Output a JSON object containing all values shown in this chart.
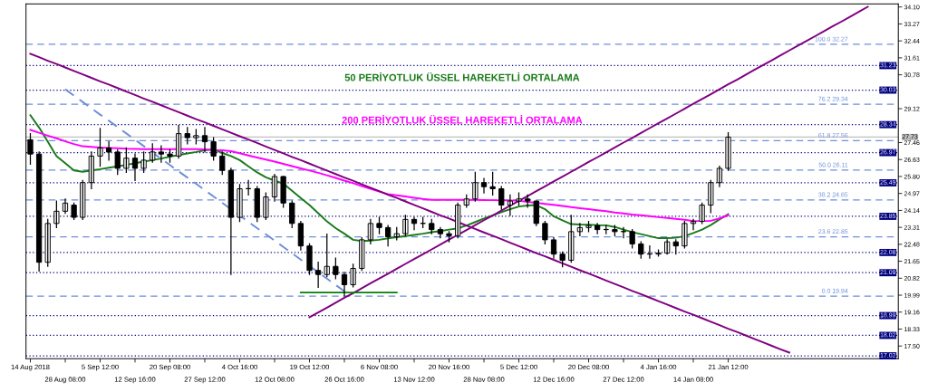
{
  "chart_data": {
    "type": "candlestick",
    "categories": [
      "14 Aug 2018",
      null,
      null,
      null,
      "28 Aug 08:00",
      null,
      null,
      null,
      "5 Sep 12:00",
      null,
      null,
      null,
      "12 Sep 16:00",
      null,
      null,
      null,
      "20 Sep 08:00",
      null,
      null,
      null,
      "27 Sep 12:00",
      null,
      null,
      null,
      "4 Oct 16:00",
      null,
      null,
      null,
      "12 Oct 08:00",
      null,
      null,
      null,
      "19 Oct 12:00",
      null,
      null,
      null,
      "26 Oct 16:00",
      null,
      null,
      null,
      "6 Nov 08:00",
      null,
      null,
      null,
      "13 Nov 12:00",
      null,
      null,
      null,
      "20 Nov 16:00",
      null,
      null,
      null,
      "28 Nov 08:00",
      null,
      null,
      null,
      "5 Dec 12:00",
      null,
      null,
      null,
      "12 Dec 16:00",
      null,
      null,
      null,
      "20 Dec 08:00",
      null,
      null,
      null,
      "27 Dec 12:00",
      null,
      null,
      null,
      "4 Jan 16:00",
      null,
      null,
      null,
      "14 Jan 08:00",
      null,
      null,
      null,
      "21 Jan 12:00",
      null,
      null,
      null,
      null,
      null,
      null,
      null,
      null,
      null,
      null,
      null,
      null,
      null,
      null,
      null,
      null,
      null,
      null,
      null
    ],
    "ohlc": [
      [
        27.6,
        27.9,
        26.4,
        26.9
      ],
      [
        26.9,
        27.0,
        21.17,
        21.6
      ],
      [
        21.6,
        23.7,
        21.4,
        23.5
      ],
      [
        23.5,
        24.6,
        23.3,
        24.1
      ],
      [
        24.1,
        24.7,
        24.0,
        24.5
      ],
      [
        24.4,
        24.5,
        23.7,
        23.8
      ],
      [
        23.8,
        25.6,
        23.7,
        25.5
      ],
      [
        25.5,
        27.0,
        25.2,
        26.8
      ],
      [
        26.8,
        28.15,
        26.3,
        27.2
      ],
      [
        27.2,
        27.5,
        26.6,
        27.0
      ],
      [
        27.0,
        27.1,
        25.9,
        26.2
      ],
      [
        26.2,
        27.2,
        26.0,
        26.7
      ],
      [
        26.7,
        26.9,
        25.6,
        26.2
      ],
      [
        26.2,
        27.0,
        26.0,
        26.6
      ],
      [
        26.6,
        27.4,
        26.5,
        27.0
      ],
      [
        27.0,
        27.3,
        26.5,
        26.9
      ],
      [
        26.9,
        27.1,
        26.5,
        26.8
      ],
      [
        26.8,
        28.3,
        26.7,
        27.9
      ],
      [
        27.9,
        28.2,
        27.4,
        27.7
      ],
      [
        27.7,
        28.1,
        27.4,
        27.8
      ],
      [
        27.8,
        28.2,
        27.0,
        27.5
      ],
      [
        27.5,
        27.7,
        26.6,
        26.8
      ],
      [
        26.8,
        27.0,
        25.9,
        26.1
      ],
      [
        26.1,
        26.2,
        21.0,
        23.8
      ],
      [
        23.8,
        25.4,
        23.6,
        25.2
      ],
      [
        25.2,
        25.6,
        24.9,
        25.2
      ],
      [
        25.2,
        25.3,
        23.6,
        23.8
      ],
      [
        23.8,
        25.0,
        23.7,
        24.8
      ],
      [
        24.8,
        25.9,
        24.6,
        25.8
      ],
      [
        25.8,
        25.8,
        24.3,
        24.5
      ],
      [
        24.5,
        24.6,
        23.3,
        23.5
      ],
      [
        23.5,
        23.6,
        22.2,
        22.4
      ],
      [
        22.4,
        22.5,
        21.0,
        21.2
      ],
      [
        21.2,
        21.6,
        20.37,
        21.0
      ],
      [
        21.0,
        22.98,
        20.9,
        21.4
      ],
      [
        21.4,
        21.8,
        20.8,
        21.0
      ],
      [
        21.0,
        21.1,
        19.95,
        20.5
      ],
      [
        20.5,
        21.5,
        20.4,
        21.3
      ],
      [
        21.3,
        22.8,
        21.2,
        22.7
      ],
      [
        22.7,
        23.7,
        22.5,
        23.5
      ],
      [
        23.5,
        23.8,
        23.0,
        23.3
      ],
      [
        23.3,
        23.4,
        22.4,
        22.85
      ],
      [
        22.85,
        23.3,
        22.7,
        23.0
      ],
      [
        23.0,
        23.9,
        22.9,
        23.7
      ],
      [
        23.7,
        23.8,
        23.2,
        23.5
      ],
      [
        23.5,
        23.8,
        23.3,
        23.5
      ],
      [
        23.5,
        23.7,
        23.0,
        23.2
      ],
      [
        23.2,
        23.3,
        22.8,
        23.0
      ],
      [
        23.0,
        23.1,
        22.6,
        22.9
      ],
      [
        22.9,
        24.5,
        22.8,
        24.4
      ],
      [
        24.4,
        24.9,
        24.3,
        24.7
      ],
      [
        24.7,
        26.0,
        24.6,
        25.5
      ],
      [
        25.5,
        25.7,
        25.0,
        25.3
      ],
      [
        25.3,
        26.0,
        24.9,
        25.2
      ],
      [
        25.2,
        25.3,
        24.2,
        24.4
      ],
      [
        24.4,
        24.9,
        23.9,
        24.6
      ],
      [
        24.6,
        25.0,
        24.4,
        24.7
      ],
      [
        24.7,
        24.9,
        24.3,
        24.6
      ],
      [
        24.6,
        24.6,
        23.4,
        23.5
      ],
      [
        23.5,
        23.6,
        22.5,
        22.7
      ],
      [
        22.7,
        22.8,
        21.8,
        22.0
      ],
      [
        22.0,
        22.1,
        21.38,
        21.7
      ],
      [
        21.7,
        23.9,
        21.6,
        23.1
      ],
      [
        23.1,
        23.5,
        22.9,
        23.3
      ],
      [
        23.3,
        23.6,
        23.1,
        23.4
      ],
      [
        23.4,
        23.5,
        23.0,
        23.2
      ],
      [
        23.2,
        23.4,
        23.0,
        23.2
      ],
      [
        23.2,
        23.4,
        22.9,
        23.1
      ],
      [
        23.1,
        23.3,
        22.8,
        23.1
      ],
      [
        23.1,
        23.2,
        22.3,
        22.5
      ],
      [
        22.5,
        22.6,
        21.8,
        22.0
      ],
      [
        22.0,
        22.4,
        21.8,
        22.0
      ],
      [
        22.0,
        22.2,
        21.9,
        22.05
      ],
      [
        22.05,
        22.7,
        22.0,
        22.6
      ],
      [
        22.6,
        22.7,
        22.0,
        22.4
      ],
      [
        22.4,
        23.6,
        22.3,
        23.5
      ],
      [
        23.5,
        23.7,
        23.2,
        23.6
      ],
      [
        23.6,
        24.5,
        23.5,
        24.4
      ],
      [
        24.4,
        25.6,
        24.03,
        25.5
      ],
      [
        25.5,
        26.3,
        25.3,
        26.2
      ],
      [
        26.2,
        27.94,
        26.1,
        27.73
      ],
      null,
      null,
      null,
      null,
      null,
      null,
      null,
      null,
      null,
      null,
      null,
      null,
      null,
      null,
      null,
      null,
      null,
      null,
      null
    ],
    "series": [
      {
        "name": "50 PERİYOTLUK ÜSSEL HAREKETLİ ORTALAMA",
        "type": "line",
        "color": "#1a7a1a",
        "values": [
          28.8,
          28.2,
          27.5,
          26.8,
          26.45,
          26.1,
          26.03,
          26.1,
          26.16,
          26.23,
          26.3,
          26.37,
          26.45,
          26.53,
          26.6,
          26.68,
          26.77,
          26.85,
          26.93,
          27.0,
          27.08,
          27.13,
          26.95,
          26.8,
          26.6,
          26.3,
          26.0,
          25.76,
          25.6,
          25.45,
          25.1,
          24.75,
          24.4,
          24.0,
          23.6,
          23.27,
          23.0,
          22.7,
          22.64,
          22.66,
          22.7,
          22.77,
          22.83,
          22.88,
          22.94,
          23.0,
          23.07,
          23.13,
          23.2,
          23.26,
          23.4,
          23.57,
          23.74,
          23.9,
          24.05,
          24.2,
          24.33,
          24.38,
          24.4,
          24.2,
          23.85,
          23.65,
          23.47,
          23.45,
          23.44,
          23.42,
          23.41,
          23.33,
          23.2,
          23.08,
          22.98,
          22.88,
          22.78,
          22.78,
          22.8,
          22.88,
          23.03,
          23.2,
          23.42,
          23.7,
          23.95,
          null,
          null,
          null,
          null,
          null,
          null,
          null,
          null,
          null,
          null,
          null,
          null,
          null,
          null,
          null,
          null,
          null,
          null,
          null
        ]
      },
      {
        "name": "200 PERİYOTLUK ÜSSEL HAREKETLİ ORTALAMA",
        "type": "line",
        "color": "#ff00ff",
        "values": [
          28.08,
          27.94,
          27.8,
          27.67,
          27.52,
          27.39,
          27.28,
          27.25,
          27.22,
          27.2,
          27.18,
          27.16,
          27.15,
          27.14,
          27.14,
          27.14,
          27.14,
          27.14,
          27.14,
          27.14,
          27.13,
          27.1,
          27.08,
          27.04,
          26.94,
          26.83,
          26.73,
          26.63,
          26.53,
          26.42,
          26.31,
          26.2,
          26.09,
          25.98,
          25.86,
          25.73,
          25.6,
          25.47,
          25.33,
          25.2,
          25.06,
          24.94,
          24.88,
          24.82,
          24.76,
          24.7,
          24.66,
          24.66,
          24.66,
          24.66,
          24.66,
          24.66,
          24.65,
          24.64,
          24.63,
          24.63,
          24.61,
          24.56,
          24.51,
          24.46,
          24.41,
          24.36,
          24.3,
          24.25,
          24.2,
          24.15,
          24.1,
          24.04,
          23.99,
          23.94,
          23.9,
          23.86,
          23.81,
          23.77,
          23.73,
          23.68,
          23.62,
          23.62,
          23.63,
          23.75,
          23.9,
          null,
          null,
          null,
          null,
          null,
          null,
          null,
          null,
          null,
          null,
          null,
          null,
          null,
          null,
          null,
          null,
          null,
          null,
          null
        ]
      },
      {
        "type": "line",
        "color": "#800080",
        "values": [
          31.81,
          31.64,
          31.47,
          31.31,
          31.14,
          30.97,
          30.8,
          30.63,
          30.46,
          30.3,
          30.13,
          29.96,
          29.79,
          29.62,
          29.46,
          29.29,
          29.12,
          28.95,
          28.78,
          28.61,
          28.45,
          28.28,
          28.11,
          27.94,
          27.77,
          27.61,
          27.44,
          27.27,
          27.1,
          26.93,
          26.76,
          26.6,
          26.43,
          26.26,
          26.09,
          25.92,
          25.75,
          25.59,
          25.42,
          25.25,
          25.08,
          24.91,
          24.75,
          24.58,
          24.41,
          24.24,
          24.07,
          23.9,
          23.74,
          23.57,
          23.4,
          23.23,
          23.06,
          22.9,
          22.73,
          22.56,
          22.39,
          22.22,
          22.05,
          21.89,
          21.72,
          21.55,
          21.38,
          21.21,
          21.05,
          20.88,
          20.71,
          20.54,
          20.37,
          20.2,
          20.04,
          19.87,
          19.7,
          19.53,
          19.36,
          19.19,
          19.03,
          18.86,
          18.69,
          18.52,
          18.35,
          18.19,
          18.02,
          17.85,
          17.68,
          17.51,
          17.34,
          17.18,
          null,
          null,
          null,
          null,
          null,
          null,
          null,
          null,
          null,
          null,
          null,
          null
        ]
      },
      {
        "type": "line",
        "color": "#800080",
        "values": [
          null,
          null,
          null,
          null,
          null,
          null,
          null,
          null,
          null,
          null,
          null,
          null,
          null,
          null,
          null,
          null,
          null,
          null,
          null,
          null,
          null,
          null,
          null,
          null,
          null,
          null,
          null,
          null,
          null,
          null,
          null,
          null,
          18.91,
          19.14,
          19.38,
          19.62,
          19.86,
          20.09,
          20.33,
          20.57,
          20.81,
          21.04,
          21.28,
          21.52,
          21.76,
          21.99,
          22.23,
          22.47,
          22.71,
          22.94,
          23.18,
          23.42,
          23.66,
          23.89,
          24.13,
          24.37,
          24.61,
          24.84,
          25.08,
          25.32,
          25.56,
          25.79,
          26.03,
          26.27,
          26.51,
          26.74,
          26.98,
          27.22,
          27.46,
          27.69,
          27.93,
          28.17,
          28.41,
          28.64,
          28.88,
          29.12,
          29.36,
          29.59,
          29.83,
          30.07,
          30.31,
          30.54,
          30.78,
          31.02,
          31.26,
          31.49,
          31.73,
          31.97,
          32.21,
          32.44,
          32.68,
          32.92,
          33.16,
          33.39,
          33.63,
          33.87,
          34.11,
          null,
          null,
          null
        ]
      },
      {
        "type": "line",
        "color": "#6f8fd8",
        "line_style": "dashed",
        "values": [
          null,
          null,
          null,
          null,
          30.07,
          29.76,
          29.45,
          29.14,
          28.83,
          28.53,
          28.22,
          27.91,
          27.6,
          27.29,
          26.98,
          26.67,
          26.36,
          26.05,
          25.75,
          25.44,
          25.13,
          24.82,
          24.51,
          24.2,
          23.89,
          23.58,
          23.27,
          22.97,
          22.66,
          22.35,
          22.04,
          21.73,
          21.42,
          21.11,
          20.8,
          20.49,
          20.18,
          null,
          null,
          null,
          null,
          null,
          null,
          null,
          null,
          null,
          null,
          null,
          null,
          null,
          null,
          null,
          null,
          null,
          null,
          null,
          null,
          null,
          null,
          null,
          null,
          null,
          null,
          null,
          null,
          null,
          null,
          null,
          null,
          null,
          null,
          null,
          null,
          null,
          null,
          null,
          null,
          null,
          null,
          null,
          null,
          null,
          null,
          null,
          null,
          null,
          null,
          null,
          null,
          null,
          null,
          null,
          null,
          null,
          null,
          null,
          null,
          null,
          null,
          null
        ]
      },
      {
        "type": "line",
        "color": "#008000",
        "values": [
          null,
          null,
          null,
          null,
          null,
          null,
          null,
          null,
          null,
          null,
          null,
          null,
          null,
          null,
          null,
          null,
          null,
          null,
          null,
          null,
          null,
          null,
          null,
          null,
          null,
          null,
          null,
          null,
          null,
          null,
          null,
          20.12,
          20.12,
          20.12,
          20.12,
          20.12,
          20.12,
          20.12,
          20.12,
          20.12,
          20.12,
          20.12,
          20.12,
          null,
          null,
          null,
          null,
          null,
          null,
          null,
          null,
          null,
          null,
          null,
          null,
          null,
          null,
          null,
          null,
          null,
          null,
          null,
          null,
          null,
          null,
          null,
          null,
          null,
          null,
          null,
          null,
          null,
          null,
          null,
          null,
          null,
          null,
          null,
          null,
          null,
          null,
          null,
          null,
          null,
          null,
          null,
          null,
          null,
          null,
          null,
          null,
          null,
          null,
          null,
          null,
          null,
          null,
          null,
          null,
          null
        ]
      }
    ],
    "ref_lines": [
      {
        "axis": "y",
        "value": 31.23,
        "label": "31.23",
        "color": "#000080",
        "line_style": "dotted"
      },
      {
        "axis": "y",
        "value": 30.03,
        "label": "30.03",
        "color": "#000080",
        "line_style": "dotted"
      },
      {
        "axis": "y",
        "value": 28.34,
        "label": "28.34",
        "color": "#000080",
        "line_style": "dotted"
      },
      {
        "axis": "y",
        "value": 26.97,
        "label": "26.97",
        "color": "#000080",
        "line_style": "dotted"
      },
      {
        "axis": "y",
        "value": 25.49,
        "label": "25.49",
        "color": "#000080",
        "line_style": "dotted"
      },
      {
        "axis": "y",
        "value": 23.85,
        "label": "23.85",
        "color": "#000080",
        "line_style": "dotted"
      },
      {
        "axis": "y",
        "value": 22.08,
        "label": "22.08",
        "color": "#000080",
        "line_style": "dotted"
      },
      {
        "axis": "y",
        "value": 21.09,
        "label": "21.09",
        "color": "#000080",
        "line_style": "dotted"
      },
      {
        "axis": "y",
        "value": 18.99,
        "label": "18.99",
        "color": "#000080",
        "line_style": "dotted"
      },
      {
        "axis": "y",
        "value": 18.02,
        "label": "18.02",
        "color": "#000080",
        "line_style": "dotted"
      },
      {
        "axis": "y",
        "value": 17.02,
        "label": "17.02",
        "color": "#000080",
        "line_style": "dotted"
      },
      {
        "axis": "y",
        "value": 32.27,
        "label": "100.0 32.27",
        "color": "#6f8fd8",
        "line_style": "dashed"
      },
      {
        "axis": "y",
        "value": 29.34,
        "label": "76.2 29.34",
        "color": "#6f8fd8",
        "line_style": "dashed"
      },
      {
        "axis": "y",
        "value": 27.56,
        "label": "61.8 27.56",
        "color": "#6f8fd8",
        "line_style": "dashed"
      },
      {
        "axis": "y",
        "value": 26.11,
        "label": "50.0 26.11",
        "color": "#6f8fd8",
        "line_style": "dashed"
      },
      {
        "axis": "y",
        "value": 24.65,
        "label": "38.2 24.65",
        "color": "#6f8fd8",
        "line_style": "dashed"
      },
      {
        "axis": "y",
        "value": 22.85,
        "label": "23.6 22.85",
        "color": "#6f8fd8",
        "line_style": "dashed"
      },
      {
        "axis": "y",
        "value": 19.94,
        "label": "0.0 19.94",
        "color": "#6f8fd8",
        "line_style": "dashed"
      },
      {
        "axis": "y",
        "value": 27.73,
        "label": "27.73",
        "color": "#c0c0c0",
        "line_style": "solid"
      }
    ],
    "ylim": [
      16.88,
      34.25
    ],
    "yticks": [
      {
        "value": 34.1,
        "label": "34.10"
      },
      33.27,
      32.44,
      31.61,
      30.78,
      29.12,
      27.46,
      26.63,
      {
        "value": 25.8,
        "label": "25.80"
      },
      24.97,
      24.14,
      23.31,
      22.48,
      21.65,
      20.82,
      19.99,
      19.16,
      18.33,
      {
        "value": 17.5,
        "label": "17.50"
      }
    ],
    "grid": false,
    "legend": false
  }
}
